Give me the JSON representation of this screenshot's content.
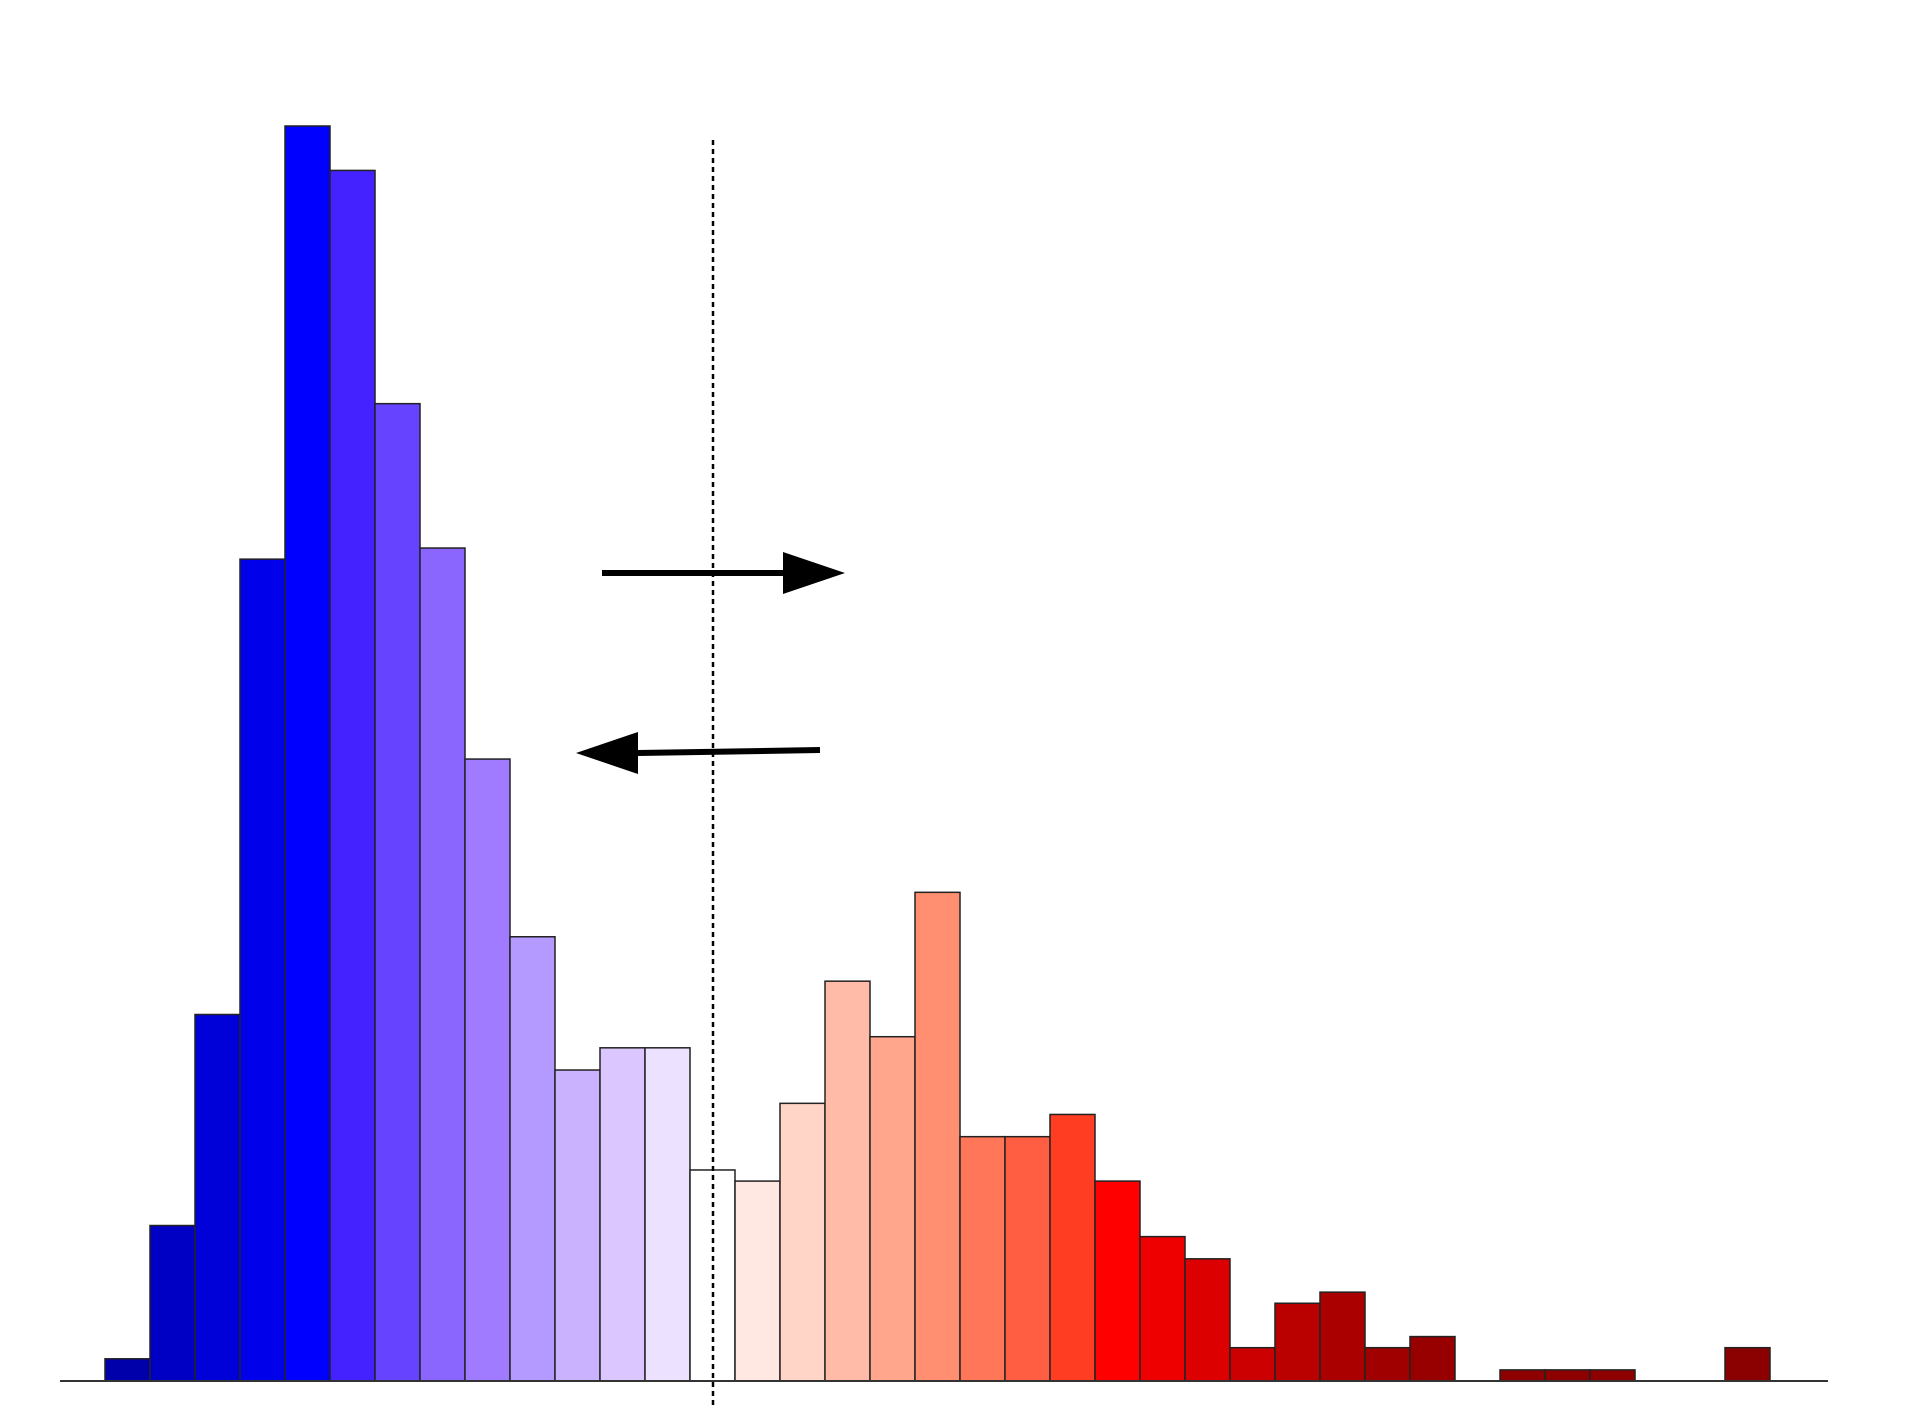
{
  "chart_data": {
    "type": "bar",
    "title": "",
    "xlabel": "",
    "ylabel": "",
    "grid": false,
    "legend": "none",
    "ylim": [
      0,
      113
    ],
    "bars": [
      {
        "value": 2,
        "color": "#0000aa"
      },
      {
        "value": 14,
        "color": "#0000c5"
      },
      {
        "value": 33,
        "color": "#0000d8"
      },
      {
        "value": 74,
        "color": "#0000ea"
      },
      {
        "value": 113,
        "color": "#0000ff"
      },
      {
        "value": 109,
        "color": "#4422ff"
      },
      {
        "value": 88,
        "color": "#6644ff"
      },
      {
        "value": 75,
        "color": "#8a66ff"
      },
      {
        "value": 56,
        "color": "#a07aff"
      },
      {
        "value": 40,
        "color": "#b499ff"
      },
      {
        "value": 28,
        "color": "#cbb2ff"
      },
      {
        "value": 30,
        "color": "#dcc6ff"
      },
      {
        "value": 30,
        "color": "#ece1ff"
      },
      {
        "value": 19,
        "color": "#ffffff"
      },
      {
        "value": 18,
        "color": "#ffe8e2"
      },
      {
        "value": 25,
        "color": "#ffd5c7"
      },
      {
        "value": 36,
        "color": "#ffbaa8"
      },
      {
        "value": 31,
        "color": "#ffa68c"
      },
      {
        "value": 44,
        "color": "#ff8f70"
      },
      {
        "value": 22,
        "color": "#ff7758"
      },
      {
        "value": 22,
        "color": "#ff5e42"
      },
      {
        "value": 24,
        "color": "#ff3d22"
      },
      {
        "value": 18,
        "color": "#ff0000"
      },
      {
        "value": 13,
        "color": "#ee0000"
      },
      {
        "value": 11,
        "color": "#dd0000"
      },
      {
        "value": 3,
        "color": "#cc0000"
      },
      {
        "value": 7,
        "color": "#bb0000"
      },
      {
        "value": 8,
        "color": "#aa0000"
      },
      {
        "value": 3,
        "color": "#a00000"
      },
      {
        "value": 4,
        "color": "#980000"
      },
      {
        "value": 0,
        "color": "#900000"
      },
      {
        "value": 1,
        "color": "#8e0000"
      },
      {
        "value": 1,
        "color": "#8e0000"
      },
      {
        "value": 1,
        "color": "#8e0000"
      },
      {
        "value": 0,
        "color": "#8c0000"
      },
      {
        "value": 0,
        "color": "#8c0000"
      },
      {
        "value": 3,
        "color": "#8b0000"
      }
    ],
    "threshold_line": {
      "style": "dotted"
    },
    "annotations": [
      {
        "type": "arrow",
        "direction": "right"
      },
      {
        "type": "arrow",
        "direction": "left"
      }
    ]
  },
  "colors": {
    "axis": "#333333",
    "bar_stroke": "#222222",
    "arrow": "#000000",
    "threshold": "#000000"
  }
}
